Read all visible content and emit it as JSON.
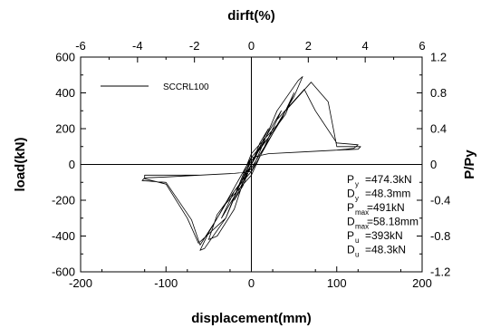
{
  "chart_data": {
    "type": "line",
    "title": "",
    "xlabel": "displacement(mm)",
    "ylabel": "load(kN)",
    "top_xlabel": "dirft(%)",
    "right_ylabel": "P/Py",
    "xlim": [
      -200,
      200
    ],
    "ylim": [
      -600,
      600
    ],
    "top_xlim": [
      -6,
      6
    ],
    "right_ylim": [
      -1.2,
      1.2
    ],
    "x_ticks": [
      -200,
      -100,
      0,
      100,
      200
    ],
    "y_ticks": [
      -600,
      -400,
      -200,
      0,
      200,
      400,
      600
    ],
    "top_x_ticks": [
      -6,
      -4,
      -2,
      0,
      2,
      4,
      6
    ],
    "right_y_ticks": [
      -1.2,
      -0.8,
      -0.4,
      0,
      0.4,
      0.8,
      1.2
    ],
    "x_tick_labels": [
      "-200",
      "-100",
      "0",
      "100",
      "200"
    ],
    "y_tick_labels": [
      "-600",
      "-400",
      "-200",
      "0",
      "200",
      "400",
      "600"
    ],
    "top_x_tick_labels": [
      "-6",
      "-4",
      "-2",
      "0",
      "2",
      "4",
      "6"
    ],
    "right_y_tick_labels": [
      "-1.2",
      "-0.8",
      "-0.4",
      "0",
      "0.4",
      "0.8",
      "1.2"
    ],
    "reference_lines": {
      "x": 0,
      "y": 0
    },
    "legend": {
      "position": "top-left",
      "entries": [
        "SCCRL100"
      ]
    },
    "series": [
      {
        "name": "SCCRL100",
        "color": "#000000",
        "x": [
          0,
          5,
          10,
          5,
          0,
          -5,
          -10,
          -5,
          0,
          10,
          20,
          10,
          0,
          -10,
          -20,
          -10,
          0,
          20,
          35,
          20,
          0,
          -20,
          -35,
          -20,
          0,
          35,
          50,
          40,
          20,
          0,
          -20,
          -40,
          -50,
          -40,
          -20,
          0,
          30,
          55,
          60,
          50,
          30,
          0,
          -30,
          -55,
          -60,
          -50,
          -30,
          0,
          30,
          62,
          75,
          100,
          125,
          120,
          100,
          60,
          20,
          0,
          -30,
          -62,
          -75,
          -100,
          -125,
          -125,
          -100,
          -60,
          -20,
          0,
          40,
          70,
          90,
          100,
          128,
          125,
          100,
          60,
          20,
          0,
          -40,
          -60,
          -70,
          -100,
          -128,
          -125,
          -100,
          -60,
          -20,
          0
        ],
        "y": [
          0,
          60,
          100,
          40,
          0,
          -60,
          -100,
          -40,
          0,
          120,
          200,
          100,
          0,
          -120,
          -200,
          -100,
          0,
          180,
          300,
          150,
          20,
          -180,
          -300,
          -150,
          -20,
          250,
          400,
          280,
          150,
          40,
          -250,
          -400,
          -420,
          -280,
          -150,
          -40,
          300,
          470,
          491,
          380,
          220,
          60,
          -300,
          -470,
          -480,
          -380,
          -220,
          -60,
          250,
          420,
          300,
          120,
          110,
          90,
          80,
          70,
          60,
          40,
          -300,
          -440,
          -300,
          -110,
          -80,
          -60,
          -60,
          -60,
          -50,
          -40,
          300,
          460,
          350,
          100,
          100,
          85,
          80,
          70,
          60,
          40,
          -300,
          -450,
          -310,
          -100,
          -90,
          -75,
          -70,
          -60,
          -50,
          -40
        ]
      }
    ]
  },
  "parameters": [
    {
      "main": "P",
      "sub": "y",
      "value": "=474.3kN"
    },
    {
      "main": "D",
      "sub": "y",
      "value": "=48.3mm"
    },
    {
      "main": "P",
      "sub": "max",
      "value": "=491kN"
    },
    {
      "main": "D",
      "sub": "max",
      "value": "=58.18mm"
    },
    {
      "main": "P",
      "sub": "u",
      "value": "=393kN"
    },
    {
      "main": "D",
      "sub": "u",
      "value": "=48.3kN"
    }
  ]
}
